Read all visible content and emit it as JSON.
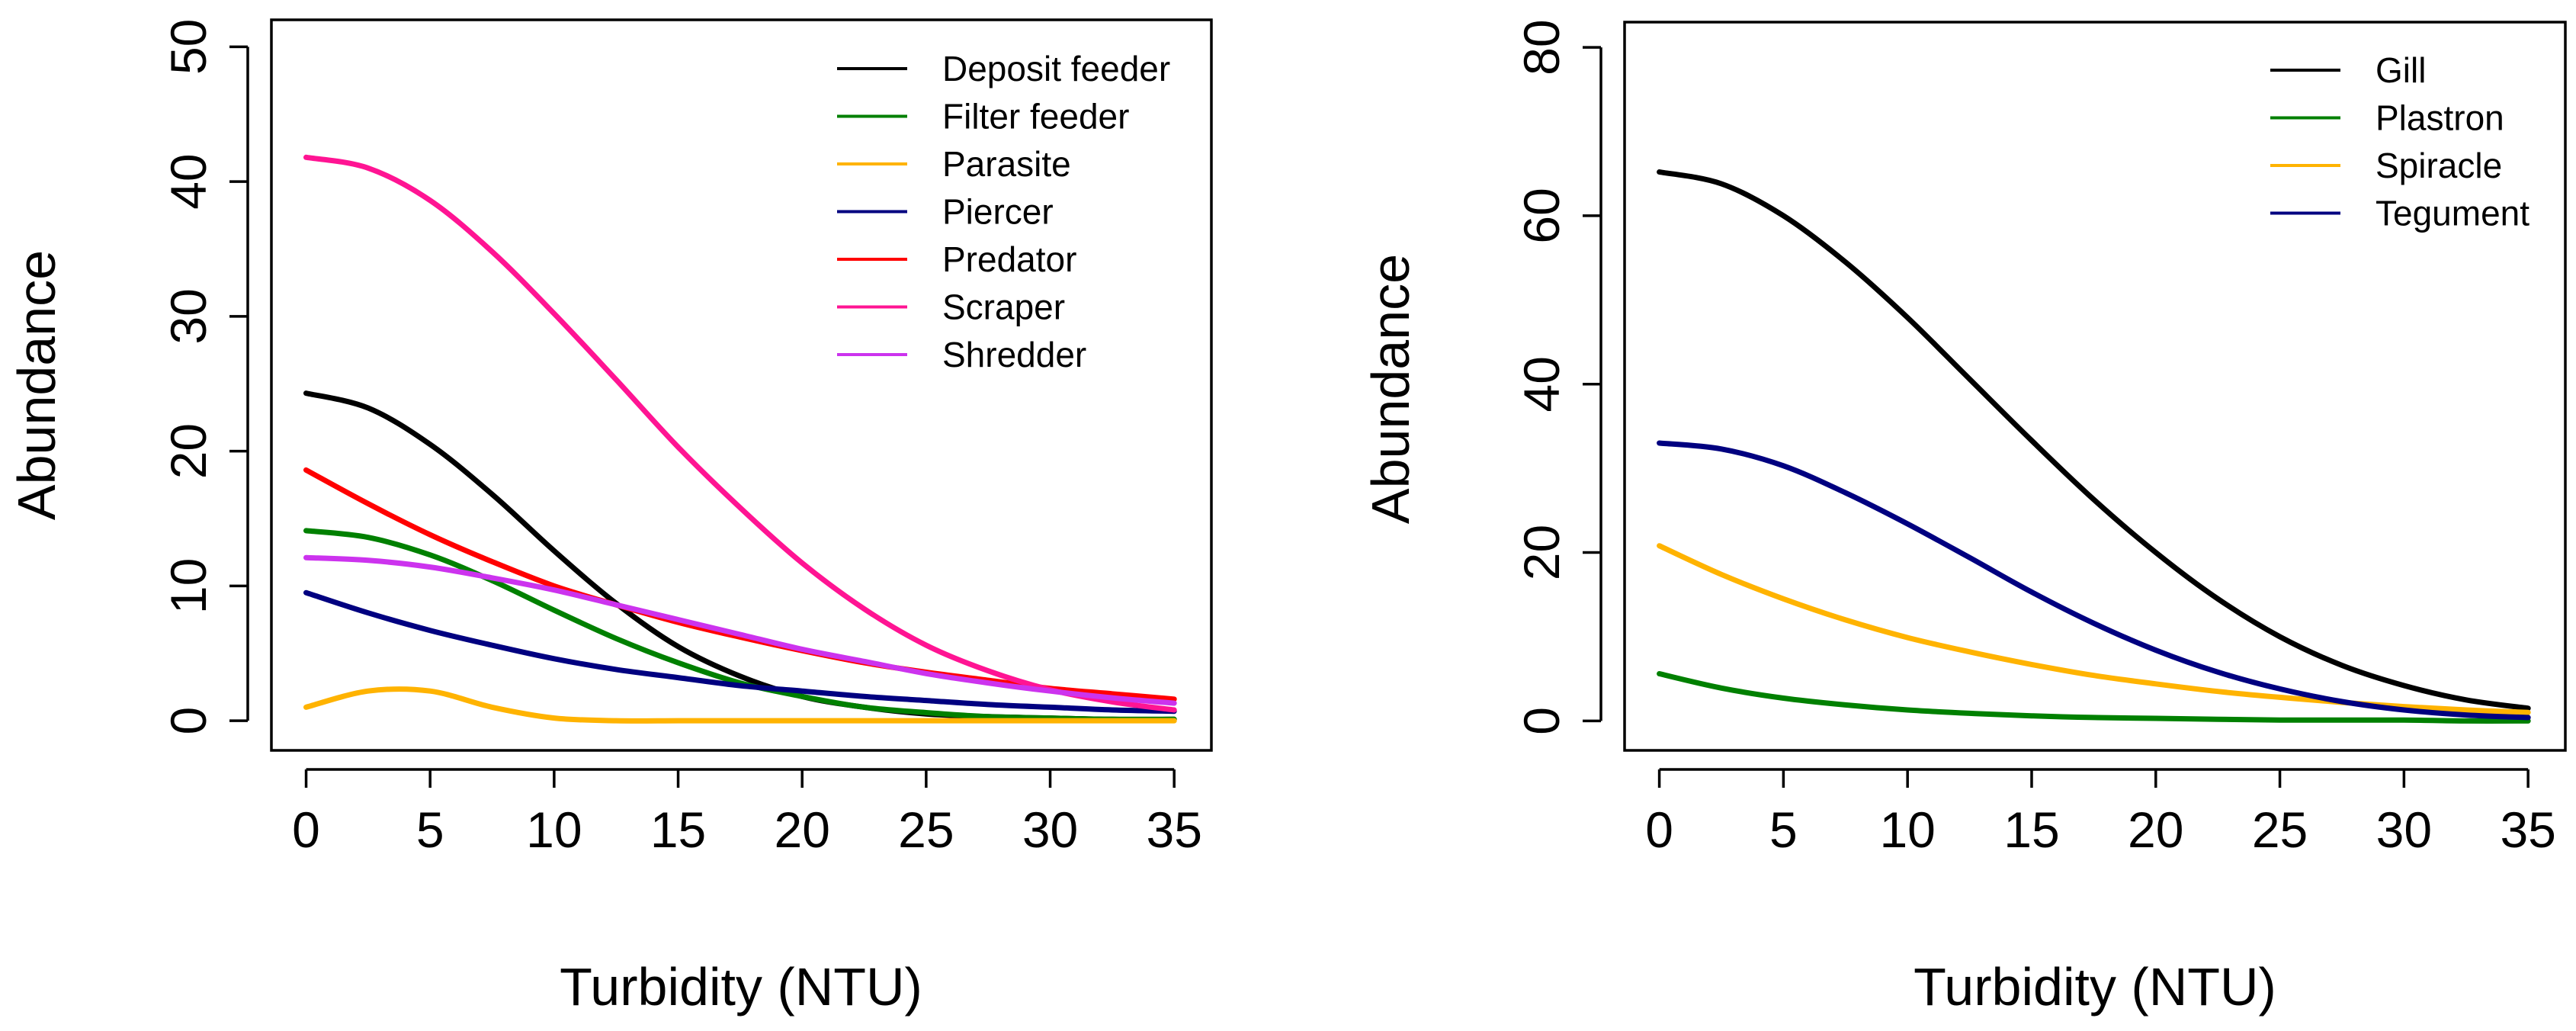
{
  "chart_data": [
    {
      "type": "line",
      "title": "",
      "xlabel": "Turbidity (NTU)",
      "ylabel": "Abundance",
      "xlim": [
        -1.4,
        36.5
      ],
      "ylim": [
        -2.2,
        52
      ],
      "xticks": [
        0,
        5,
        10,
        15,
        20,
        25,
        30,
        35
      ],
      "xtick_labels": [
        "0",
        "5",
        "10",
        "15",
        "20",
        "25",
        "30",
        "35"
      ],
      "yticks": [
        0,
        10,
        20,
        30,
        40,
        50
      ],
      "ytick_labels": [
        "0",
        "10",
        "20",
        "30",
        "40",
        "50"
      ],
      "grid": false,
      "legend_position": "top-right",
      "x": [
        0,
        2.5,
        5,
        7.5,
        10,
        12.5,
        15,
        17.5,
        20,
        22.5,
        25,
        27.5,
        30,
        32.5,
        35
      ],
      "series": [
        {
          "name": "Deposit feeder",
          "color": "#000000",
          "values": [
            24.3,
            23.2,
            20.5,
            16.8,
            12.6,
            8.7,
            5.5,
            3.3,
            1.8,
            1.0,
            0.5,
            0.3,
            0.2,
            0.1,
            0.1
          ]
        },
        {
          "name": "Filter feeder",
          "color": "#008000",
          "values": [
            14.1,
            13.6,
            12.3,
            10.4,
            8.2,
            6.1,
            4.3,
            2.8,
            1.8,
            1.0,
            0.6,
            0.3,
            0.2,
            0.1,
            0.1
          ]
        },
        {
          "name": "Parasite",
          "color": "#FFB300",
          "values": [
            1.0,
            2.2,
            2.2,
            1.0,
            0.2,
            0.0,
            0.0,
            0.0,
            0.0,
            0.0,
            0.0,
            0.0,
            0.0,
            0.0,
            0.0
          ]
        },
        {
          "name": "Piercer",
          "color": "#000080",
          "values": [
            9.5,
            8.0,
            6.7,
            5.6,
            4.6,
            3.8,
            3.2,
            2.6,
            2.2,
            1.8,
            1.5,
            1.2,
            1.0,
            0.8,
            0.7
          ]
        },
        {
          "name": "Predator",
          "color": "#FF0000",
          "values": [
            18.6,
            16.1,
            13.8,
            11.8,
            10.0,
            8.6,
            7.3,
            6.2,
            5.2,
            4.3,
            3.6,
            3.0,
            2.4,
            2.0,
            1.6
          ]
        },
        {
          "name": "Scraper",
          "color": "#FF1493",
          "values": [
            41.8,
            41.0,
            38.6,
            34.8,
            30.2,
            25.3,
            20.3,
            15.8,
            11.7,
            8.3,
            5.6,
            3.7,
            2.3,
            1.4,
            0.8
          ]
        },
        {
          "name": "Shredder",
          "color": "#CC33EE",
          "values": [
            12.1,
            11.9,
            11.4,
            10.6,
            9.7,
            8.6,
            7.5,
            6.4,
            5.3,
            4.4,
            3.5,
            2.8,
            2.2,
            1.7,
            1.3
          ]
        }
      ]
    },
    {
      "type": "line",
      "title": "",
      "xlabel": "Turbidity (NTU)",
      "ylabel": "Abundance",
      "xlim": [
        -1.4,
        36.5
      ],
      "ylim": [
        -3.5,
        83
      ],
      "xticks": [
        0,
        5,
        10,
        15,
        20,
        25,
        30,
        35
      ],
      "xtick_labels": [
        "0",
        "5",
        "10",
        "15",
        "20",
        "25",
        "30",
        "35"
      ],
      "yticks": [
        0,
        20,
        40,
        60,
        80
      ],
      "ytick_labels": [
        "0",
        "20",
        "40",
        "60",
        "80"
      ],
      "grid": false,
      "legend_position": "top-right",
      "x": [
        0,
        2.5,
        5,
        7.5,
        10,
        12.5,
        15,
        17.5,
        20,
        22.5,
        25,
        27.5,
        30,
        32.5,
        35
      ],
      "series": [
        {
          "name": "Gill",
          "color": "#000000",
          "values": [
            65.2,
            63.8,
            60.0,
            54.5,
            47.9,
            40.6,
            33.3,
            26.3,
            20.0,
            14.5,
            10.0,
            6.6,
            4.2,
            2.5,
            1.5
          ]
        },
        {
          "name": "Plastron",
          "color": "#008000",
          "values": [
            5.6,
            3.9,
            2.7,
            1.9,
            1.3,
            0.9,
            0.6,
            0.4,
            0.3,
            0.2,
            0.1,
            0.1,
            0.1,
            0.0,
            0.0
          ]
        },
        {
          "name": "Spiracle",
          "color": "#FFB300",
          "values": [
            20.8,
            17.4,
            14.5,
            12.0,
            9.9,
            8.2,
            6.7,
            5.4,
            4.4,
            3.5,
            2.8,
            2.2,
            1.7,
            1.3,
            1.0
          ]
        },
        {
          "name": "Tegument",
          "color": "#000080",
          "values": [
            33.0,
            32.3,
            30.3,
            27.1,
            23.4,
            19.4,
            15.3,
            11.6,
            8.4,
            5.8,
            3.8,
            2.3,
            1.3,
            0.7,
            0.4
          ]
        }
      ]
    }
  ]
}
